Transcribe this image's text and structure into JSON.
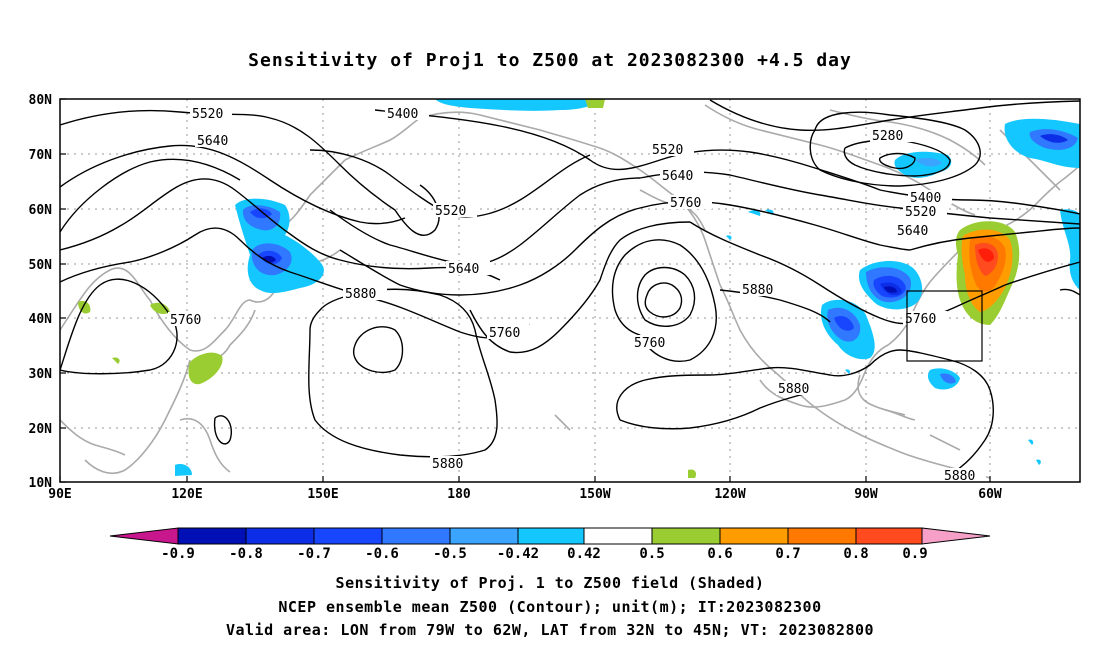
{
  "title": "Sensitivity of Proj1 to Z500 at 2023082300 +4.5 day",
  "lat_labels": [
    "80N",
    "70N",
    "60N",
    "50N",
    "40N",
    "30N",
    "20N",
    "10N"
  ],
  "lon_labels": [
    "90E",
    "120E",
    "150E",
    "180",
    "150W",
    "120W",
    "90W",
    "60W"
  ],
  "contour_labels": [
    "5520",
    "5400",
    "5640",
    "5520",
    "5640",
    "5760",
    "5280",
    "5400",
    "5520",
    "5520",
    "5640",
    "5640",
    "5880",
    "5760",
    "5760",
    "5760",
    "5880",
    "5880",
    "5760",
    "5880",
    "5880"
  ],
  "colorbar": {
    "labels": [
      "-0.9",
      "-0.8",
      "-0.7",
      "-0.6",
      "-0.5",
      "-0.42",
      "0.42",
      "0.5",
      "0.6",
      "0.7",
      "0.8",
      "0.9"
    ],
    "colors": [
      "#c8168c",
      "#0010b4",
      "#0b2ee6",
      "#1846ff",
      "#2f78ff",
      "#3aa4ff",
      "#14c8ff",
      "#ffffff",
      "#9acd32",
      "#ff9d00",
      "#ff7800",
      "#ff4b1e",
      "#ff1e0a",
      "#f6a0c8"
    ]
  },
  "captions": [
    "Sensitivity of Proj. 1 to Z500 field (Shaded)",
    "NCEP ensemble mean Z500 (Contour); unit(m); IT:2023082300",
    "Valid area: LON from 79W to 62W, LAT from 32N to 45N; VT: 2023082800"
  ]
}
